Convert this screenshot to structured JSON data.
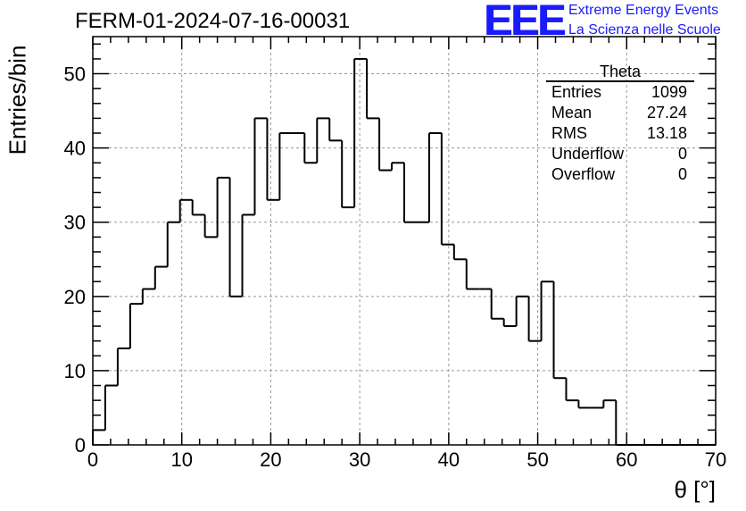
{
  "header": {
    "title": "FERM-01-2024-07-16-00031",
    "logo": "EEE",
    "logo_line1": "Extreme Energy Events",
    "logo_line2": "La Scienza nelle Scuole"
  },
  "stats_box": {
    "title": "Theta",
    "rows": [
      {
        "label": "Entries",
        "value": "1099"
      },
      {
        "label": "Mean",
        "value": "27.24"
      },
      {
        "label": "RMS",
        "value": "13.18"
      },
      {
        "label": "Underflow",
        "value": "0"
      },
      {
        "label": "Overflow",
        "value": "0"
      }
    ]
  },
  "chart_data": {
    "type": "bar",
    "histogram": true,
    "title": "FERM-01-2024-07-16-00031",
    "xlabel": "θ [°]",
    "ylabel": "Entries/bin",
    "xlim": [
      0,
      70
    ],
    "ylim": [
      0,
      55
    ],
    "bin_width": 1.4,
    "bin_edges_start": 0,
    "values": [
      2,
      8,
      13,
      19,
      21,
      24,
      30,
      33,
      31,
      28,
      36,
      20,
      31,
      44,
      33,
      42,
      42,
      38,
      44,
      41,
      32,
      52,
      44,
      37,
      38,
      30,
      30,
      42,
      27,
      25,
      21,
      21,
      17,
      16,
      20,
      14,
      22,
      9,
      6,
      5,
      5,
      6,
      0,
      0,
      0,
      0,
      0,
      0,
      0,
      0
    ],
    "x_ticks": [
      0,
      10,
      20,
      30,
      40,
      50,
      60,
      70
    ],
    "y_ticks": [
      0,
      10,
      20,
      30,
      40,
      50
    ],
    "grid": true,
    "colors": {
      "line": "#000000",
      "grid": "#999999",
      "logo": "#1a1aff"
    }
  }
}
